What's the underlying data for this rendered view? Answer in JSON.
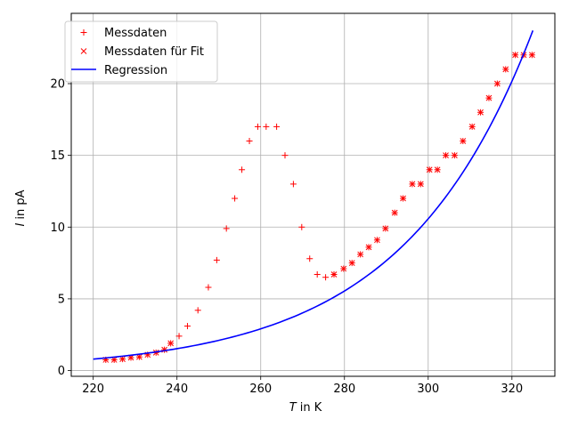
{
  "chart_data": {
    "type": "scatter",
    "xlabel_var": "T",
    "xlabel_unit": " in K",
    "ylabel_var": "I",
    "ylabel_unit": " in pA",
    "xlim": [
      214.75,
      330.25
    ],
    "ylim": [
      -0.4,
      24.9
    ],
    "xticks": [
      220,
      240,
      260,
      280,
      300,
      320
    ],
    "yticks": [
      0,
      5,
      10,
      15,
      20
    ],
    "grid": true,
    "legend_position": "top-left",
    "series": [
      {
        "name": "Messdaten",
        "marker": "plus",
        "color": "#ff0000",
        "points": [
          [
            223,
            0.75
          ],
          [
            225,
            0.75
          ],
          [
            227,
            0.8
          ],
          [
            229,
            0.9
          ],
          [
            231,
            0.95
          ],
          [
            233,
            1.1
          ],
          [
            235,
            1.25
          ],
          [
            237,
            1.45
          ],
          [
            238.5,
            1.9
          ],
          [
            240.5,
            2.4
          ],
          [
            242.5,
            3.1
          ],
          [
            245,
            4.2
          ],
          [
            247.5,
            5.8
          ],
          [
            249.5,
            7.7
          ],
          [
            251.8,
            9.9
          ],
          [
            253.8,
            12
          ],
          [
            255.5,
            14
          ],
          [
            257.3,
            16
          ],
          [
            259.3,
            17
          ],
          [
            261.3,
            17
          ],
          [
            263.8,
            17
          ],
          [
            265.8,
            15
          ],
          [
            267.8,
            13
          ],
          [
            269.8,
            10
          ],
          [
            271.7,
            7.8
          ],
          [
            273.5,
            6.7
          ],
          [
            275.5,
            6.5
          ],
          [
            277.5,
            6.7
          ],
          [
            279.8,
            7.1
          ],
          [
            281.8,
            7.5
          ],
          [
            283.8,
            8.1
          ],
          [
            285.8,
            8.6
          ],
          [
            287.8,
            9.1
          ],
          [
            289.8,
            9.9
          ],
          [
            292,
            11
          ],
          [
            294,
            12
          ],
          [
            296.2,
            13
          ],
          [
            298.2,
            13
          ],
          [
            300.3,
            14
          ],
          [
            302.2,
            14
          ],
          [
            304.2,
            15
          ],
          [
            306.3,
            15
          ],
          [
            308.3,
            16
          ],
          [
            310.5,
            17
          ],
          [
            312.5,
            18
          ],
          [
            314.5,
            19
          ],
          [
            316.5,
            20
          ],
          [
            318.5,
            21
          ],
          [
            320.8,
            22
          ],
          [
            322.8,
            22
          ],
          [
            324.8,
            22
          ]
        ]
      },
      {
        "name": "Messdaten für Fit",
        "marker": "x",
        "color": "#ff0000",
        "points": [
          [
            223,
            0.75
          ],
          [
            225,
            0.75
          ],
          [
            227,
            0.8
          ],
          [
            229,
            0.9
          ],
          [
            231,
            0.95
          ],
          [
            233,
            1.1
          ],
          [
            235,
            1.25
          ],
          [
            237,
            1.45
          ],
          [
            238.5,
            1.9
          ],
          [
            277.5,
            6.7
          ],
          [
            279.8,
            7.1
          ],
          [
            281.8,
            7.5
          ],
          [
            283.8,
            8.1
          ],
          [
            285.8,
            8.6
          ],
          [
            287.8,
            9.1
          ],
          [
            289.8,
            9.9
          ],
          [
            292,
            11
          ],
          [
            294,
            12
          ],
          [
            296.2,
            13
          ],
          [
            298.2,
            13
          ],
          [
            300.3,
            14
          ],
          [
            302.2,
            14
          ],
          [
            304.2,
            15
          ],
          [
            306.3,
            15
          ],
          [
            308.3,
            16
          ],
          [
            310.5,
            17
          ],
          [
            312.5,
            18
          ],
          [
            314.5,
            19
          ],
          [
            316.5,
            20
          ],
          [
            318.5,
            21
          ],
          [
            320.8,
            22
          ],
          [
            322.8,
            22
          ],
          [
            324.8,
            22
          ]
        ]
      },
      {
        "name": "Regression",
        "marker": "line",
        "color": "#0000ff",
        "curve": {
          "x_start": 220,
          "x_end": 325,
          "y_start": 0.8,
          "y_end": 23.7
        }
      }
    ]
  }
}
